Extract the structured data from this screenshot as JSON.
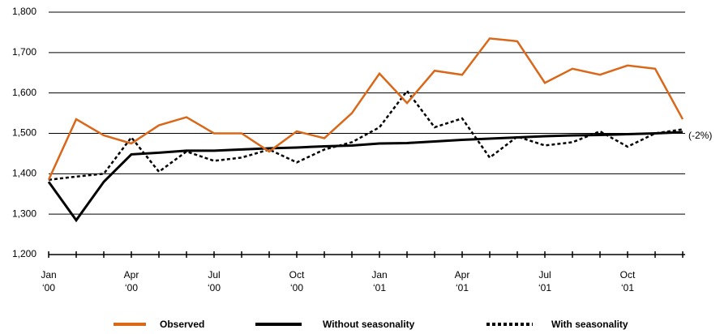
{
  "chart_data": {
    "type": "line",
    "categories": [
      [
        "Jan",
        "‘00"
      ],
      null,
      null,
      [
        "Apr",
        "‘00"
      ],
      null,
      null,
      [
        "Jul",
        "‘00"
      ],
      null,
      null,
      [
        "Oct",
        "‘00"
      ],
      null,
      null,
      [
        "Jan",
        "‘01"
      ],
      null,
      null,
      [
        "Apr",
        "‘01"
      ],
      null,
      null,
      [
        "Jul",
        "‘01"
      ],
      null,
      null,
      [
        "Oct",
        "‘01"
      ],
      null,
      null
    ],
    "series": [
      {
        "name": "Observed",
        "color": "#d9681a",
        "dash": "solid",
        "values": [
          1385,
          1535,
          1495,
          1475,
          1520,
          1540,
          1500,
          1500,
          1455,
          1505,
          1488,
          1550,
          1648,
          1575,
          1655,
          1645,
          1735,
          1728,
          1625,
          1660,
          1645,
          1668,
          1660,
          1535
        ]
      },
      {
        "name": "Without seasonality",
        "color": "#000000",
        "dash": "solid",
        "values": [
          1380,
          1285,
          1380,
          1448,
          1452,
          1457,
          1457,
          1460,
          1463,
          1465,
          1468,
          1470,
          1475,
          1476,
          1480,
          1484,
          1487,
          1490,
          1493,
          1495,
          1496,
          1498,
          1500,
          1503
        ]
      },
      {
        "name": "With seasonality",
        "color": "#000000",
        "dash": "dotted",
        "values": [
          1385,
          1393,
          1400,
          1490,
          1405,
          1455,
          1432,
          1440,
          1460,
          1428,
          1460,
          1478,
          1515,
          1605,
          1515,
          1537,
          1440,
          1492,
          1470,
          1478,
          1505,
          1467,
          1500,
          1510
        ]
      }
    ],
    "annotation": "(-2%)",
    "ylim": [
      1200,
      1800
    ],
    "yticks": [
      {
        "value": 1200,
        "label": "1,200"
      },
      {
        "value": 1300,
        "label": "1,300"
      },
      {
        "value": 1400,
        "label": "1,400"
      },
      {
        "value": 1500,
        "label": "1,500"
      },
      {
        "value": 1600,
        "label": "1,600"
      },
      {
        "value": 1700,
        "label": "1,700"
      },
      {
        "value": 1800,
        "label": "1,800"
      }
    ],
    "grid": true
  }
}
